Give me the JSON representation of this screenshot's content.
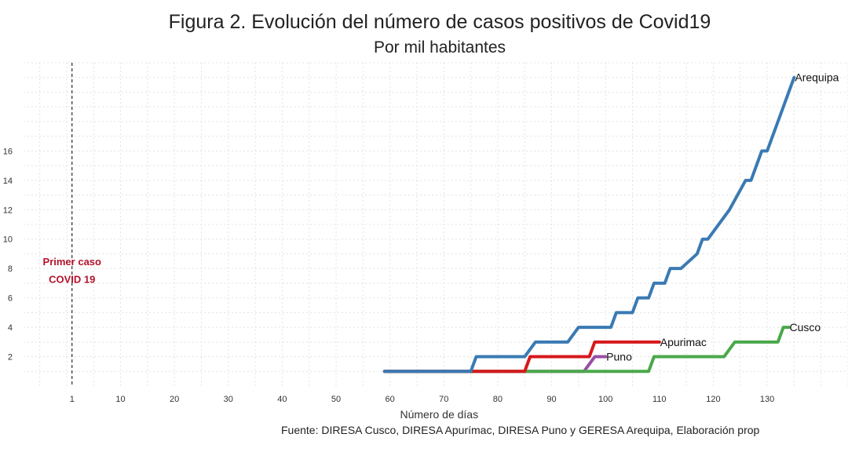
{
  "chart_data": {
    "type": "line",
    "title": "Figura 2. Evolución del número de casos positivos de Covid19",
    "subtitle": "Por mil habitantes",
    "xlabel": "Número de días",
    "ylabel": "",
    "source": "Fuente: DIRESA Cusco, DIRESA Apurímac, DIRESA Puno y GERESA Arequipa, Elaboración prop",
    "x_ticks": [
      1,
      10,
      20,
      30,
      40,
      50,
      60,
      70,
      80,
      90,
      100,
      110,
      120,
      130
    ],
    "y_ticks": [
      2,
      4,
      6,
      8,
      10,
      12,
      14,
      16
    ],
    "xlim": [
      -8,
      145
    ],
    "ylim": [
      0,
      22
    ],
    "grid": true,
    "vline": {
      "x": 1,
      "label_line1": "Primer caso",
      "label_line2": "COVID 19"
    },
    "series": [
      {
        "name": "Arequipa",
        "color": "#3a7ab3",
        "x": [
          59,
          75,
          76,
          85,
          87,
          93,
          95,
          101,
          102,
          105,
          106,
          108,
          109,
          111,
          112,
          114,
          117,
          118,
          119,
          123,
          126,
          127,
          128,
          129,
          130,
          135
        ],
        "y": [
          1,
          1,
          2,
          2,
          3,
          3,
          4,
          4,
          5,
          5,
          6,
          6,
          7,
          7,
          8,
          8,
          9,
          10,
          10,
          12,
          14,
          14,
          15,
          16,
          16,
          21
        ]
      },
      {
        "name": "Apurimac",
        "color": "#d7191c",
        "x": [
          59,
          85,
          86,
          97,
          98,
          110
        ],
        "y": [
          1,
          1,
          2,
          2,
          3,
          3
        ]
      },
      {
        "name": "Cusco",
        "color": "#4aa84a",
        "x": [
          59,
          108,
          109,
          122,
          124,
          132,
          133,
          134
        ],
        "y": [
          1,
          1,
          2,
          2,
          3,
          3,
          4,
          4
        ]
      },
      {
        "name": "Puno",
        "color": "#984ea3",
        "x": [
          59,
          96,
          98,
          100
        ],
        "y": [
          1,
          1,
          2,
          2
        ]
      }
    ]
  }
}
